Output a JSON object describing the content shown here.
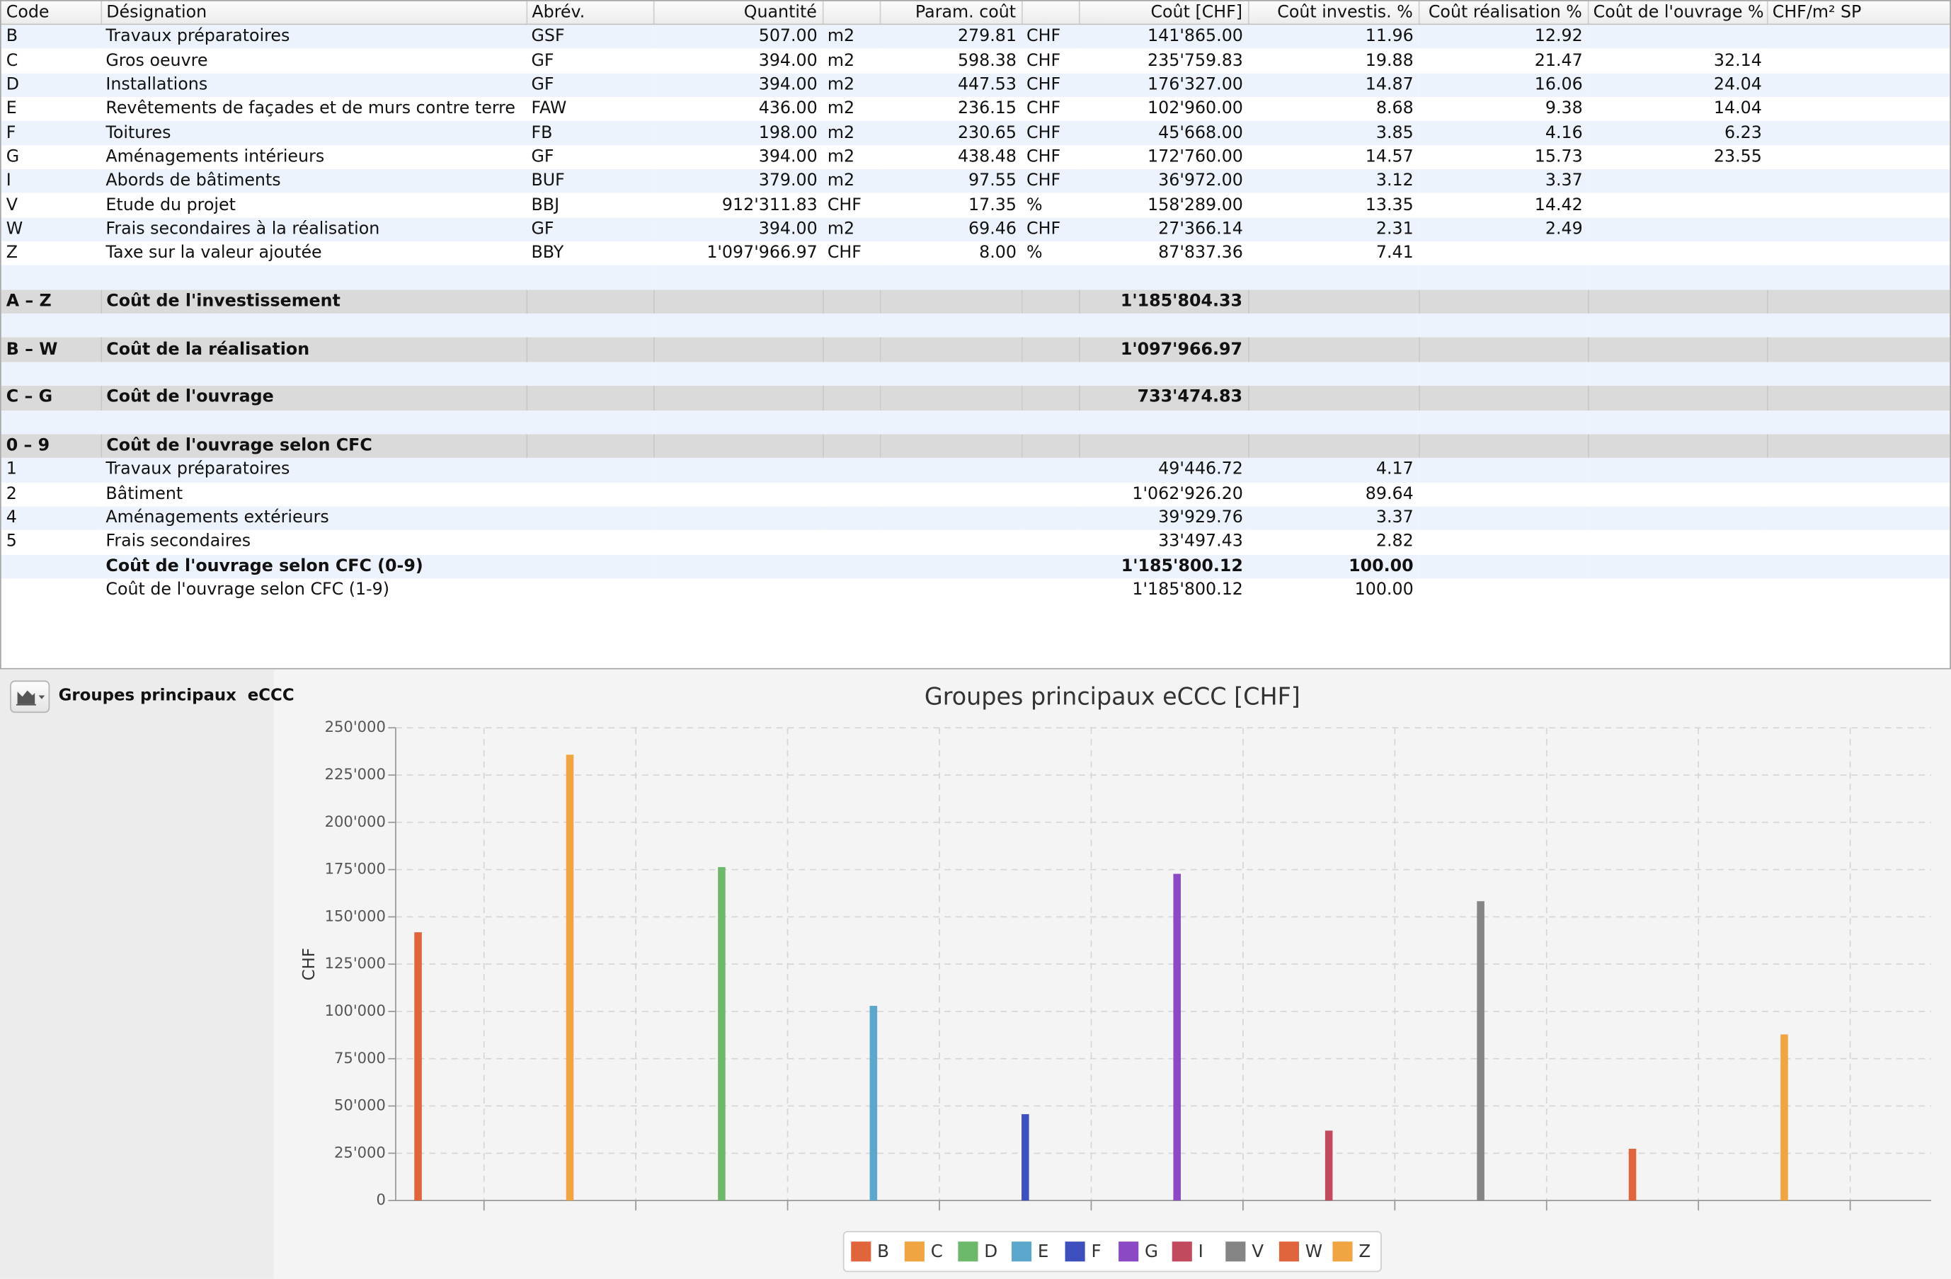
{
  "table": {
    "header": [
      "Code",
      "Désignation",
      "Abrév.",
      "Quantité",
      null,
      "Param. coût",
      null,
      "Coût [CHF]",
      "Coût investis. %",
      "Coût réalisation %",
      "Coût de l'ouvrage %",
      "CHF/m² SP"
    ],
    "rows": [
      [
        "B",
        "Travaux préparatoires",
        "GSF",
        "507.00",
        "m2",
        "279.81",
        "CHF",
        "141'865.00",
        "11.96",
        "12.92",
        null,
        null
      ],
      [
        "C",
        "Gros oeuvre",
        "GF",
        "394.00",
        "m2",
        "598.38",
        "CHF",
        "235'759.83",
        "19.88",
        "21.47",
        "32.14",
        null
      ],
      [
        "D",
        "Installations",
        "GF",
        "394.00",
        "m2",
        "447.53",
        "CHF",
        "176'327.00",
        "14.87",
        "16.06",
        "24.04",
        null
      ],
      [
        "E",
        "Revêtements de façades et de murs contre terre",
        "FAW",
        "436.00",
        "m2",
        "236.15",
        "CHF",
        "102'960.00",
        "8.68",
        "9.38",
        "14.04",
        null
      ],
      [
        "F",
        "Toitures",
        "FB",
        "198.00",
        "m2",
        "230.65",
        "CHF",
        "45'668.00",
        "3.85",
        "4.16",
        "6.23",
        null
      ],
      [
        "G",
        "Aménagements intérieurs",
        "GF",
        "394.00",
        "m2",
        "438.48",
        "CHF",
        "172'760.00",
        "14.57",
        "15.73",
        "23.55",
        null
      ],
      [
        "I",
        "Abords de bâtiments",
        "BUF",
        "379.00",
        "m2",
        "97.55",
        "CHF",
        "36'972.00",
        "3.12",
        "3.37",
        null,
        null
      ],
      [
        "V",
        "Etude du projet",
        "BBJ",
        "912'311.83",
        "CHF",
        "17.35",
        "%",
        "158'289.00",
        "13.35",
        "14.42",
        null,
        null
      ],
      [
        "W",
        "Frais secondaires à la réalisation",
        "GF",
        "394.00",
        "m2",
        "69.46",
        "CHF",
        "27'366.14",
        "2.31",
        "2.49",
        null,
        null
      ],
      [
        "Z",
        "Taxe sur la valeur ajoutée",
        "BBY",
        "1'097'966.97",
        "CHF",
        "8.00",
        "%",
        "87'837.36",
        "7.41",
        null,
        null,
        null
      ],
      [],
      [
        "A – Z",
        "Coût de l'investissement",
        null,
        null,
        null,
        null,
        null,
        "1'185'804.33",
        null,
        null,
        null,
        null
      ],
      [],
      [
        "B – W",
        "Coût de la réalisation",
        null,
        null,
        null,
        null,
        null,
        "1'097'966.97",
        null,
        null,
        null,
        null
      ],
      [],
      [
        "C – G",
        "Coût de l'ouvrage",
        null,
        null,
        null,
        null,
        null,
        "733'474.83",
        null,
        null,
        null,
        null
      ],
      [],
      [
        "0 – 9",
        "Coût de l'ouvrage selon CFC",
        null,
        null,
        null,
        null,
        null,
        null,
        null,
        null,
        null,
        null
      ],
      [
        "1",
        "Travaux préparatoires",
        null,
        null,
        null,
        null,
        null,
        "49'446.72",
        "4.17",
        null,
        null,
        null
      ],
      [
        "2",
        "Bâtiment",
        null,
        null,
        null,
        null,
        null,
        "1'062'926.20",
        "89.64",
        null,
        null,
        null
      ],
      [
        "4",
        "Aménagements extérieurs",
        null,
        null,
        null,
        null,
        null,
        "39'929.76",
        "3.37",
        null,
        null,
        null
      ],
      [
        "5",
        "Frais secondaires",
        null,
        null,
        null,
        null,
        null,
        "33'497.43",
        "2.82",
        null,
        null,
        null
      ],
      [
        null,
        "Coût de l'ouvrage selon CFC (0-9)",
        null,
        null,
        null,
        null,
        null,
        "1'185'800.12",
        "100.00",
        null,
        null,
        null
      ],
      [
        null,
        "Coût de l'ouvrage selon CFC (1-9)",
        null,
        null,
        null,
        null,
        null,
        "1'185'800.12",
        "100.00",
        null,
        null,
        null
      ]
    ]
  },
  "sidebar": {
    "label": "Groupes principaux  eCCC"
  },
  "chart_data": {
    "type": "bar",
    "title": "Groupes principaux eCCC [CHF]",
    "y_label": "CHF",
    "ylim": [
      0,
      250000
    ],
    "yticks": [
      0,
      {
        "value": 25000,
        "label": "25'000"
      },
      {
        "value": 50000,
        "label": "50'000"
      },
      {
        "value": 75000,
        "label": "75'000"
      },
      {
        "value": 100000,
        "label": "100'000"
      },
      {
        "value": 125000,
        "label": "125'000"
      },
      {
        "value": 150000,
        "label": "150'000"
      },
      {
        "value": 175000,
        "label": "175'000"
      },
      {
        "value": 200000,
        "label": "200'000"
      },
      {
        "value": 225000,
        "label": "225'000"
      },
      {
        "value": 250000,
        "label": "250'000"
      }
    ],
    "grid": true,
    "legend": "bottom",
    "series": [
      {
        "name": "B",
        "color": "#e0643c",
        "values": [
          141865.0
        ]
      },
      {
        "name": "C",
        "color": "#f0a442",
        "values": [
          235759.83
        ]
      },
      {
        "name": "D",
        "color": "#6db86b",
        "values": [
          176327.0
        ]
      },
      {
        "name": "E",
        "color": "#5ba8cc",
        "values": [
          102960.0
        ]
      },
      {
        "name": "F",
        "color": "#3e50bd",
        "values": [
          45668.0
        ]
      },
      {
        "name": "G",
        "color": "#8b4ac4",
        "values": [
          172760.0
        ]
      },
      {
        "name": "I",
        "color": "#c24a5f",
        "values": [
          36972.0
        ]
      },
      {
        "name": "V",
        "color": "#858585",
        "values": [
          158289.0
        ]
      },
      {
        "name": "W",
        "color": "#e0643c",
        "values": [
          27366.14
        ]
      },
      {
        "name": "Z",
        "color": "#f0a442",
        "values": [
          87837.36
        ]
      }
    ]
  }
}
